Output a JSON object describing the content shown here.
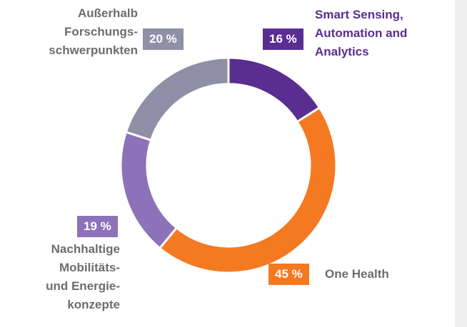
{
  "chart_data": {
    "type": "donut",
    "categories": [
      "Smart Sensing,\nAutomation and\nAnalytics",
      "One Health",
      "Nachhaltige\nMobilitäts-\nund Energie-\nkonzepte",
      "Außerhalb\nForschungs-\nschwerpunkten"
    ],
    "values": [
      16,
      45,
      19,
      20
    ],
    "value_labels": [
      "16 %",
      "45 %",
      "19 %",
      "20 %"
    ],
    "colors": [
      "#5a2d91",
      "#f47920",
      "#8c72b8",
      "#8f8fa8"
    ]
  }
}
